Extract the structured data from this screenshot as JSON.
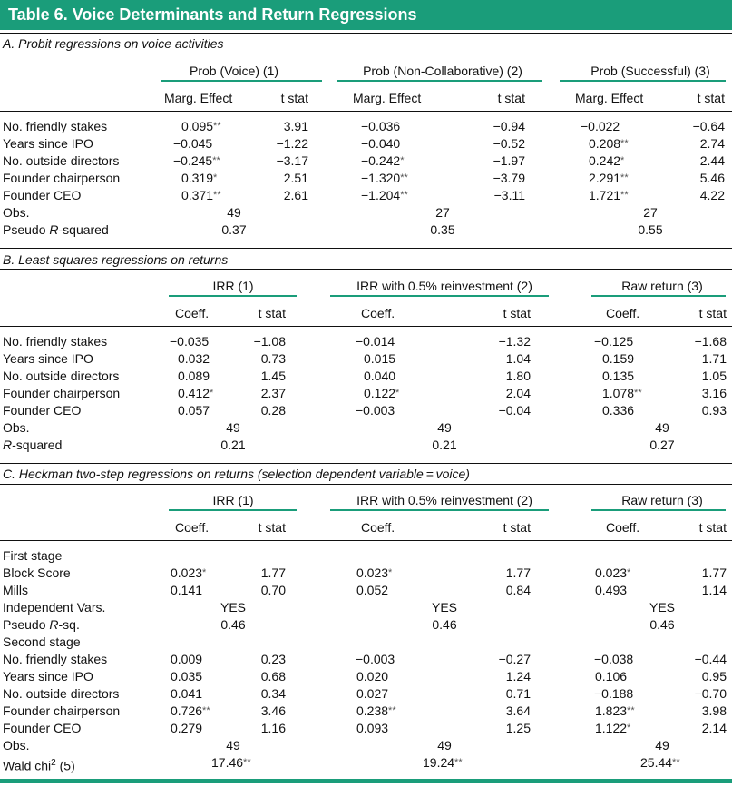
{
  "title": "Table 6.  Voice Determinants and Return Regressions",
  "panelA": {
    "heading": "A. Probit regressions on voice activities",
    "groups": [
      "Prob (Voice) (1)",
      "Prob (Non-Collaborative) (2)",
      "Prob (Successful) (3)"
    ],
    "subheads": [
      "Marg. Effect",
      "t stat",
      "Marg. Effect",
      "t stat",
      "Marg. Effect",
      "t stat"
    ],
    "rows": [
      {
        "label": "No. friendly stakes",
        "cells": [
          [
            "0.095",
            "**"
          ],
          [
            "3.91",
            ""
          ],
          [
            "−0.036",
            ""
          ],
          [
            "−0.94",
            ""
          ],
          [
            "−0.022",
            ""
          ],
          [
            "−0.64",
            ""
          ]
        ]
      },
      {
        "label": "Years since IPO",
        "cells": [
          [
            "−0.045",
            ""
          ],
          [
            "−1.22",
            ""
          ],
          [
            "−0.040",
            ""
          ],
          [
            "−0.52",
            ""
          ],
          [
            "0.208",
            "**"
          ],
          [
            "2.74",
            ""
          ]
        ]
      },
      {
        "label": "No. outside directors",
        "cells": [
          [
            "−0.245",
            "**"
          ],
          [
            "−3.17",
            ""
          ],
          [
            "−0.242",
            "*"
          ],
          [
            "−1.97",
            ""
          ],
          [
            "0.242",
            "*"
          ],
          [
            "2.44",
            ""
          ]
        ]
      },
      {
        "label": "Founder chairperson",
        "cells": [
          [
            "0.319",
            "*"
          ],
          [
            "2.51",
            ""
          ],
          [
            "−1.320",
            "**"
          ],
          [
            "−3.79",
            ""
          ],
          [
            "2.291",
            "**"
          ],
          [
            "5.46",
            ""
          ]
        ]
      },
      {
        "label": "Founder CEO",
        "cells": [
          [
            "0.371",
            "**"
          ],
          [
            "2.61",
            ""
          ],
          [
            "−1.204",
            "**"
          ],
          [
            "−3.11",
            ""
          ],
          [
            "1.721",
            "**"
          ],
          [
            "4.22",
            ""
          ]
        ]
      }
    ],
    "obs": {
      "label": "Obs.",
      "values": [
        "49",
        "27",
        "27"
      ]
    },
    "fit": {
      "label_pre": "Pseudo ",
      "label_ital": "R",
      "label_post": "-squared",
      "values": [
        "0.37",
        "0.35",
        "0.55"
      ]
    }
  },
  "panelB": {
    "heading": "B. Least squares regressions on returns",
    "groups": [
      "IRR (1)",
      "IRR with 0.5% reinvestment (2)",
      "Raw return (3)"
    ],
    "subheads": [
      "Coeff.",
      "t stat",
      "Coeff.",
      "t stat",
      "Coeff.",
      "t stat"
    ],
    "rows": [
      {
        "label": "No. friendly stakes",
        "cells": [
          [
            "−0.035",
            ""
          ],
          [
            "−1.08",
            ""
          ],
          [
            "−0.014",
            ""
          ],
          [
            "−1.32",
            ""
          ],
          [
            "−0.125",
            ""
          ],
          [
            "−1.68",
            ""
          ]
        ]
      },
      {
        "label": "Years since IPO",
        "cells": [
          [
            "0.032",
            ""
          ],
          [
            "0.73",
            ""
          ],
          [
            "0.015",
            ""
          ],
          [
            "1.04",
            ""
          ],
          [
            "0.159",
            ""
          ],
          [
            "1.71",
            ""
          ]
        ]
      },
      {
        "label": "No. outside directors",
        "cells": [
          [
            "0.089",
            ""
          ],
          [
            "1.45",
            ""
          ],
          [
            "0.040",
            ""
          ],
          [
            "1.80",
            ""
          ],
          [
            "0.135",
            ""
          ],
          [
            "1.05",
            ""
          ]
        ]
      },
      {
        "label": "Founder chairperson",
        "cells": [
          [
            "0.412",
            "*"
          ],
          [
            "2.37",
            ""
          ],
          [
            "0.122",
            "*"
          ],
          [
            "2.04",
            ""
          ],
          [
            "1.078",
            "**"
          ],
          [
            "3.16",
            ""
          ]
        ]
      },
      {
        "label": "Founder CEO",
        "cells": [
          [
            "0.057",
            ""
          ],
          [
            "0.28",
            ""
          ],
          [
            "−0.003",
            ""
          ],
          [
            "−0.04",
            ""
          ],
          [
            "0.336",
            ""
          ],
          [
            "0.93",
            ""
          ]
        ]
      }
    ],
    "obs": {
      "label": "Obs.",
      "values": [
        "49",
        "49",
        "49"
      ]
    },
    "fit": {
      "label_pre": "",
      "label_ital": "R",
      "label_post": "-squared",
      "values": [
        "0.21",
        "0.21",
        "0.27"
      ]
    }
  },
  "panelC": {
    "heading": "C. Heckman two-step regressions on returns (selection dependent variable = voice)",
    "groups": [
      "IRR (1)",
      "IRR with 0.5% reinvestment (2)",
      "Raw return (3)"
    ],
    "subheads": [
      "Coeff.",
      "t stat",
      "Coeff.",
      "t stat",
      "Coeff.",
      "t stat"
    ],
    "first_stage_label": "First stage",
    "first_rows": [
      {
        "label": "Block Score",
        "cells": [
          [
            "0.023",
            "*"
          ],
          [
            "1.77",
            ""
          ],
          [
            "0.023",
            "*"
          ],
          [
            "1.77",
            ""
          ],
          [
            "0.023",
            "*"
          ],
          [
            "1.77",
            ""
          ]
        ]
      },
      {
        "label": "Mills",
        "cells": [
          [
            "0.141",
            ""
          ],
          [
            "0.70",
            ""
          ],
          [
            "0.052",
            ""
          ],
          [
            "0.84",
            ""
          ],
          [
            "0.493",
            ""
          ],
          [
            "1.14",
            ""
          ]
        ]
      }
    ],
    "indep": {
      "label": "Independent Vars.",
      "values": [
        "YES",
        "YES",
        "YES"
      ]
    },
    "pseudo": {
      "label_pre": "Pseudo ",
      "label_ital": "R",
      "label_post": "-sq.",
      "values": [
        "0.46",
        "0.46",
        "0.46"
      ]
    },
    "second_stage_label": "Second stage",
    "second_rows": [
      {
        "label": "No. friendly stakes",
        "cells": [
          [
            "0.009",
            ""
          ],
          [
            "0.23",
            ""
          ],
          [
            "−0.003",
            ""
          ],
          [
            "−0.27",
            ""
          ],
          [
            "−0.038",
            ""
          ],
          [
            "−0.44",
            ""
          ]
        ]
      },
      {
        "label": "Years since IPO",
        "cells": [
          [
            "0.035",
            ""
          ],
          [
            "0.68",
            ""
          ],
          [
            "0.020",
            ""
          ],
          [
            "1.24",
            ""
          ],
          [
            "0.106",
            ""
          ],
          [
            "0.95",
            ""
          ]
        ]
      },
      {
        "label": "No. outside directors",
        "cells": [
          [
            "0.041",
            ""
          ],
          [
            "0.34",
            ""
          ],
          [
            "0.027",
            ""
          ],
          [
            "0.71",
            ""
          ],
          [
            "−0.188",
            ""
          ],
          [
            "−0.70",
            ""
          ]
        ]
      },
      {
        "label": "Founder chairperson",
        "cells": [
          [
            "0.726",
            "**"
          ],
          [
            "3.46",
            ""
          ],
          [
            "0.238",
            "**"
          ],
          [
            "3.64",
            ""
          ],
          [
            "1.823",
            "**"
          ],
          [
            "3.98",
            ""
          ]
        ]
      },
      {
        "label": "Founder CEO",
        "cells": [
          [
            "0.279",
            ""
          ],
          [
            "1.16",
            ""
          ],
          [
            "0.093",
            ""
          ],
          [
            "1.25",
            ""
          ],
          [
            "1.122",
            "*"
          ],
          [
            "2.14",
            ""
          ]
        ]
      }
    ],
    "obs": {
      "label": "Obs.",
      "values": [
        "49",
        "49",
        "49"
      ]
    },
    "wald": {
      "label_pre": "Wald chi",
      "label_sup": "2",
      "label_post": " (5)",
      "values": [
        [
          "17.46",
          "**"
        ],
        [
          "19.24",
          "**"
        ],
        [
          "25.44",
          "**"
        ]
      ]
    }
  }
}
